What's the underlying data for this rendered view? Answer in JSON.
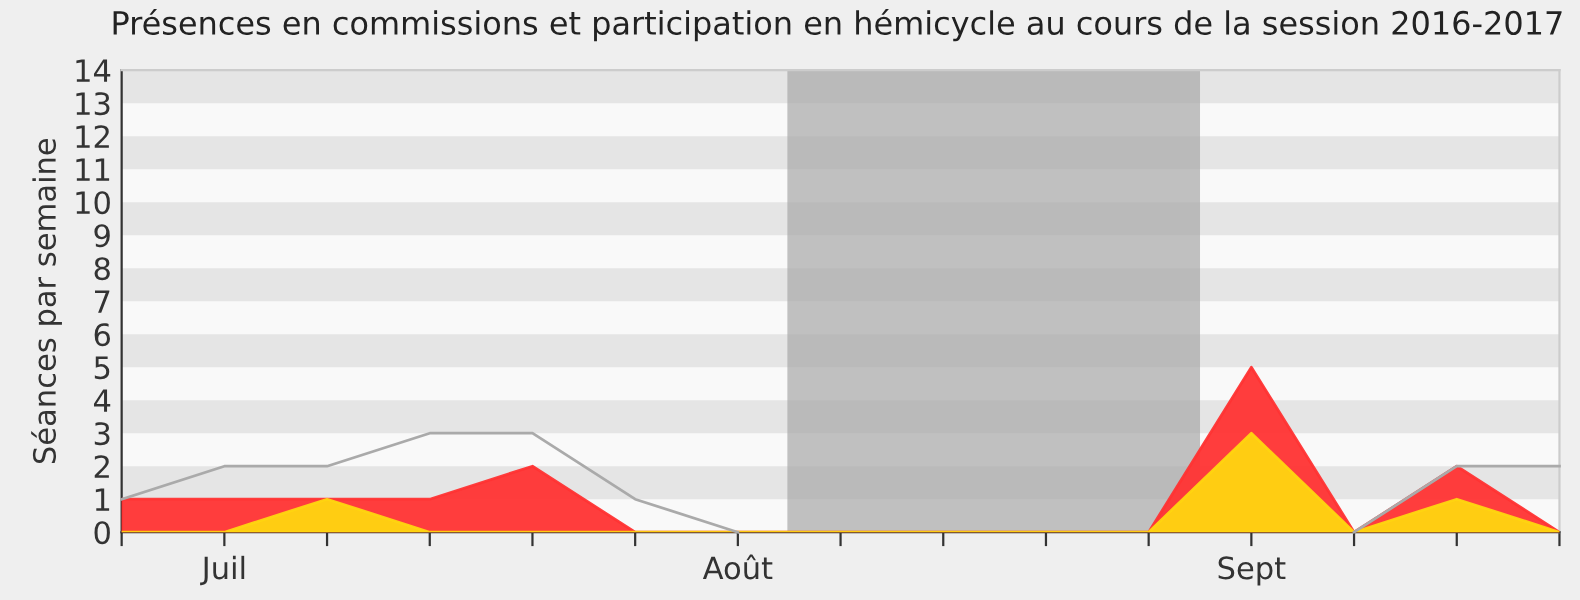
{
  "chart_data": {
    "type": "area",
    "title": "Présences en commissions et participation en hémicycle au cours de la session 2016-2017",
    "ylabel": "Séances par semaine",
    "categories": [
      null,
      "Juil",
      null,
      null,
      null,
      null,
      "Août",
      null,
      null,
      null,
      null,
      "Sept",
      null,
      null,
      null
    ],
    "series": [
      {
        "type": "line",
        "color": "#aaaaaa",
        "values": [
          1,
          2,
          2,
          3,
          3,
          1,
          0,
          null,
          null,
          null,
          null,
          null,
          0,
          2,
          2
        ]
      },
      {
        "color": "#ff3333",
        "values": [
          1,
          1,
          1,
          1,
          2,
          0,
          0,
          0,
          0,
          0,
          0,
          5,
          0,
          2,
          0
        ]
      },
      {
        "color": "#ffd510",
        "values": [
          0,
          0,
          1,
          0,
          0,
          0,
          0,
          0,
          0,
          0,
          0,
          3,
          0,
          1,
          0
        ]
      }
    ],
    "ylim": [
      0,
      14
    ],
    "yticks": [
      0,
      1,
      2,
      3,
      4,
      5,
      6,
      7,
      8,
      9,
      10,
      11,
      12,
      13,
      14
    ],
    "legend": false
  }
}
